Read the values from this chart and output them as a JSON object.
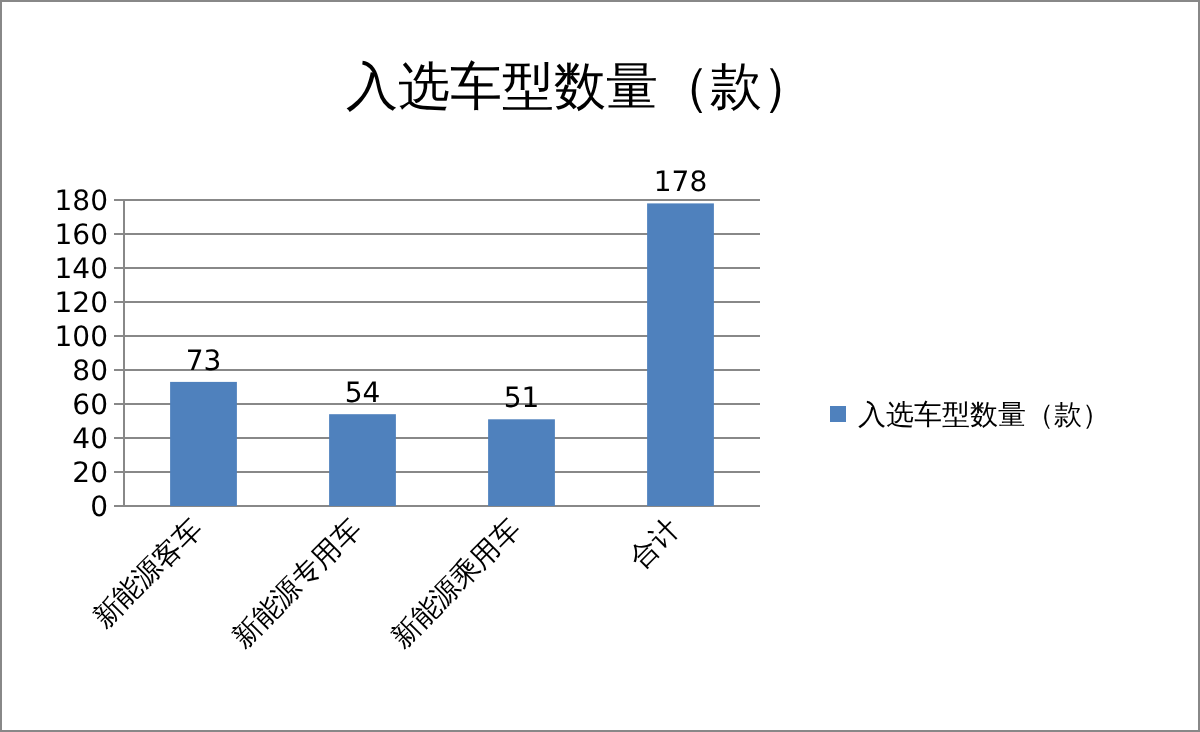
{
  "chart_data": {
    "type": "bar",
    "title": "入选车型数量（款）",
    "categories": [
      "新能源客车",
      "新能源专用车",
      "新能源乘用车",
      "合计"
    ],
    "series": [
      {
        "name": "入选车型数量（款）",
        "color": "#4f81bd",
        "values": [
          73,
          54,
          51,
          178
        ]
      }
    ],
    "ylim": [
      0,
      180
    ],
    "yticks": [
      0,
      20,
      40,
      60,
      80,
      100,
      120,
      140,
      160,
      180
    ],
    "grid": "y",
    "legend": "right",
    "data_labels": true
  }
}
